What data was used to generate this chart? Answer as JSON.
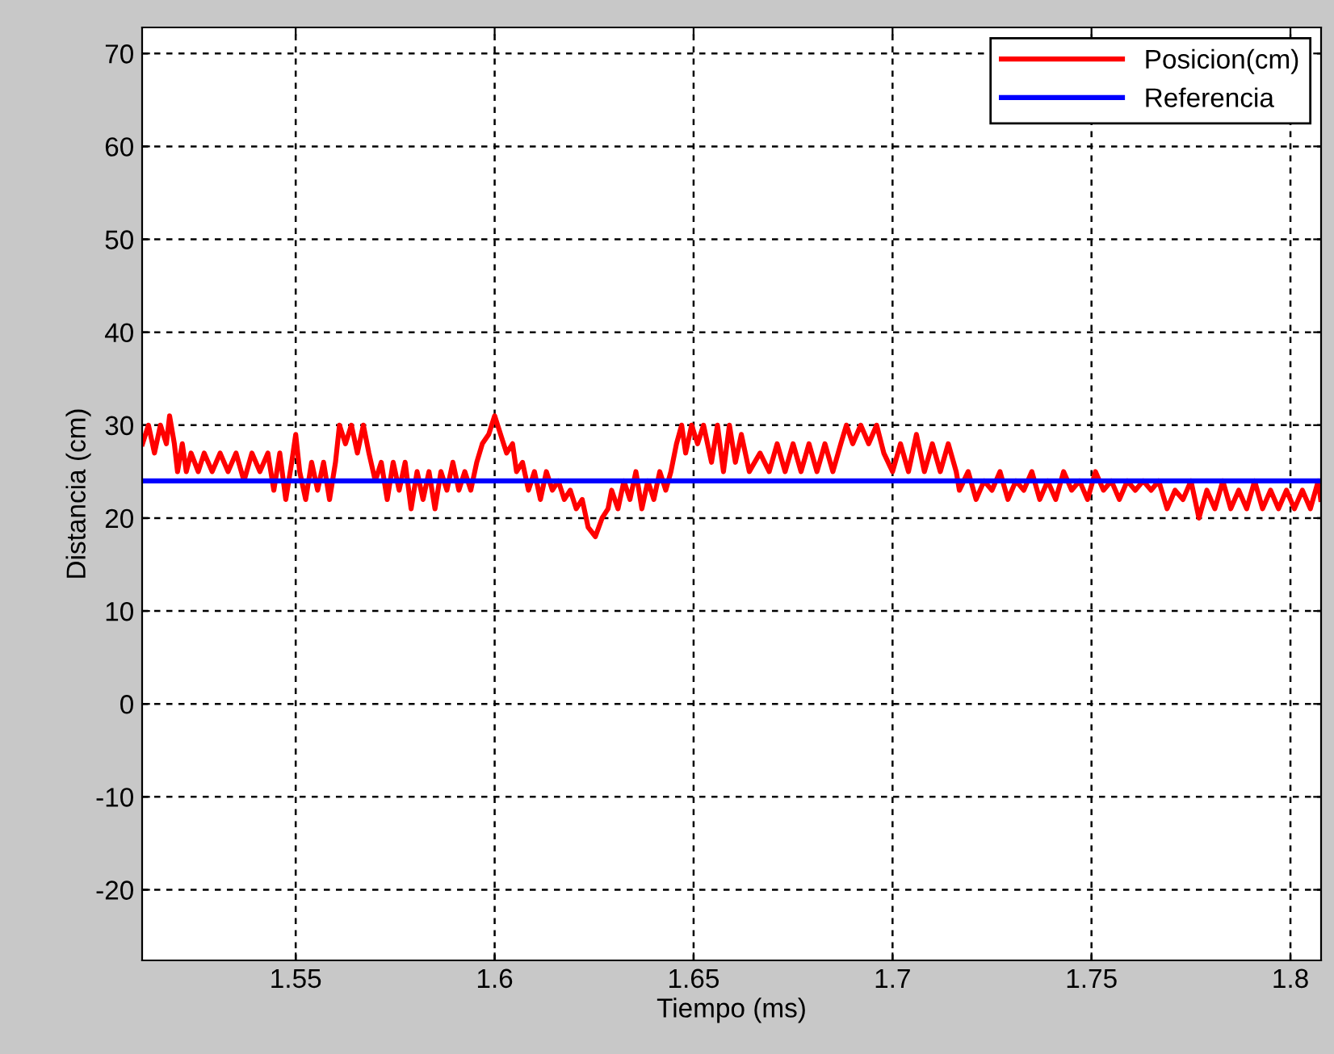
{
  "chart_data": {
    "type": "line",
    "xlabel": "Tiempo (ms)",
    "ylabel": "Distancia (cm)",
    "xlim": [
      1.5114,
      1.8077
    ],
    "ylim": [
      -27.6,
      72.8
    ],
    "xticks": [
      1.55,
      1.6,
      1.65,
      1.7,
      1.75,
      1.8
    ],
    "yticks": [
      -20,
      -10,
      0,
      10,
      20,
      30,
      40,
      50,
      60,
      70
    ],
    "grid": true,
    "legend": "top right",
    "line_style": "solid",
    "marker": "none",
    "series": [
      {
        "name": "Posicion(cm)",
        "color": "#ff0000",
        "x": [
          1.5115,
          1.513,
          1.5145,
          1.516,
          1.5175,
          1.5183,
          1.5195,
          1.5203,
          1.5215,
          1.5225,
          1.5237,
          1.5255,
          1.527,
          1.529,
          1.531,
          1.533,
          1.535,
          1.537,
          1.539,
          1.541,
          1.543,
          1.5445,
          1.546,
          1.5475,
          1.549,
          1.55,
          1.551,
          1.5525,
          1.554,
          1.5555,
          1.557,
          1.5585,
          1.56,
          1.561,
          1.5625,
          1.564,
          1.5655,
          1.567,
          1.5684,
          1.57,
          1.5715,
          1.573,
          1.5745,
          1.576,
          1.5775,
          1.579,
          1.5805,
          1.582,
          1.5835,
          1.585,
          1.5865,
          1.588,
          1.5895,
          1.591,
          1.5925,
          1.594,
          1.5955,
          1.5969,
          1.5985,
          1.6,
          1.6015,
          1.603,
          1.6045,
          1.6055,
          1.607,
          1.6085,
          1.61,
          1.6115,
          1.613,
          1.6145,
          1.616,
          1.6175,
          1.619,
          1.6205,
          1.622,
          1.6235,
          1.6253,
          1.627,
          1.6285,
          1.6294,
          1.631,
          1.6325,
          1.634,
          1.6355,
          1.637,
          1.6385,
          1.64,
          1.6415,
          1.643,
          1.6443,
          1.6457,
          1.647,
          1.648,
          1.6495,
          1.651,
          1.6525,
          1.6545,
          1.656,
          1.6575,
          1.659,
          1.6605,
          1.662,
          1.664,
          1.6667,
          1.669,
          1.671,
          1.673,
          1.675,
          1.677,
          1.679,
          1.681,
          1.683,
          1.685,
          1.687,
          1.6884,
          1.69,
          1.692,
          1.694,
          1.696,
          1.6978,
          1.7,
          1.702,
          1.704,
          1.706,
          1.708,
          1.71,
          1.712,
          1.714,
          1.716,
          1.7168,
          1.719,
          1.721,
          1.723,
          1.725,
          1.727,
          1.729,
          1.731,
          1.733,
          1.735,
          1.737,
          1.739,
          1.741,
          1.743,
          1.745,
          1.747,
          1.749,
          1.751,
          1.753,
          1.755,
          1.757,
          1.759,
          1.761,
          1.763,
          1.765,
          1.7669,
          1.769,
          1.771,
          1.773,
          1.775,
          1.777,
          1.779,
          1.781,
          1.783,
          1.785,
          1.787,
          1.789,
          1.791,
          1.793,
          1.795,
          1.797,
          1.799,
          1.801,
          1.803,
          1.805,
          1.807,
          1.8076
        ],
        "values": [
          28,
          30,
          27,
          30,
          28,
          31,
          28,
          25,
          28,
          25,
          27,
          25,
          27,
          25,
          27,
          25,
          27,
          24,
          27,
          25,
          27,
          23,
          27,
          22,
          26,
          29,
          25,
          22,
          26,
          23,
          26,
          22,
          26,
          30,
          28,
          30,
          27,
          30,
          27,
          24,
          26,
          22,
          26,
          23,
          26,
          21,
          25,
          22,
          25,
          21,
          25,
          23,
          26,
          23,
          25,
          23,
          26,
          28,
          29,
          31,
          29,
          27,
          28,
          25,
          26,
          23,
          25,
          22,
          25,
          23,
          24,
          22,
          23,
          21,
          22,
          19,
          18,
          20,
          21,
          23,
          21,
          24,
          22,
          25,
          21,
          24,
          22,
          25,
          23,
          25,
          28,
          30,
          27,
          30,
          28,
          30,
          26,
          30,
          25,
          30,
          26,
          29,
          25,
          27,
          25,
          28,
          25,
          28,
          25,
          28,
          25,
          28,
          25,
          28,
          30,
          28,
          30,
          28,
          30,
          27,
          25,
          28,
          25,
          29,
          25,
          28,
          25,
          28,
          25,
          23,
          25,
          22,
          24,
          23,
          25,
          22,
          24,
          23,
          25,
          22,
          24,
          22,
          25,
          23,
          24,
          22,
          25,
          23,
          24,
          22,
          24,
          23,
          24,
          23,
          24,
          21,
          23,
          22,
          24,
          20,
          23,
          21,
          24,
          21,
          23,
          21,
          24,
          21,
          23,
          21,
          23,
          21,
          23,
          21,
          24,
          22
        ]
      },
      {
        "name": "Referencia",
        "color": "#0000ff",
        "x": [
          1.5114,
          1.8077
        ],
        "values": [
          24,
          24
        ]
      }
    ]
  }
}
